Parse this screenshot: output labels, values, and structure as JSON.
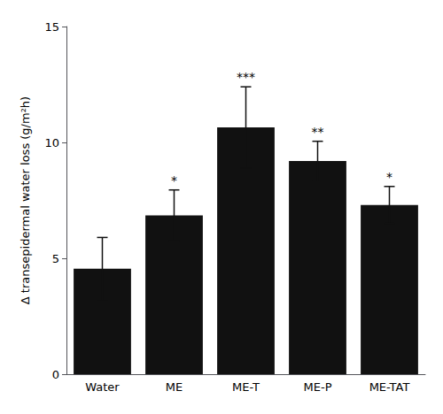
{
  "chart_data": {
    "type": "bar",
    "categories": [
      "Water",
      "ME",
      "ME-T",
      "ME-P",
      "ME-TAT"
    ],
    "values": [
      4.55,
      6.85,
      10.65,
      9.2,
      7.3
    ],
    "errors": [
      1.35,
      1.1,
      1.75,
      0.85,
      0.8
    ],
    "color": "#111111",
    "ylabel": "Δ transepidermal water loss (g/m²h)",
    "annotations": [
      {
        "x": "ME",
        "text": "*"
      },
      {
        "x": "ME-T",
        "text": "***"
      },
      {
        "x": "ME-P",
        "text": "**"
      },
      {
        "x": "ME-TAT",
        "text": "*"
      }
    ],
    "ylim": [
      0,
      15
    ],
    "yticks": [
      0,
      5,
      10,
      15
    ],
    "grid": false
  }
}
